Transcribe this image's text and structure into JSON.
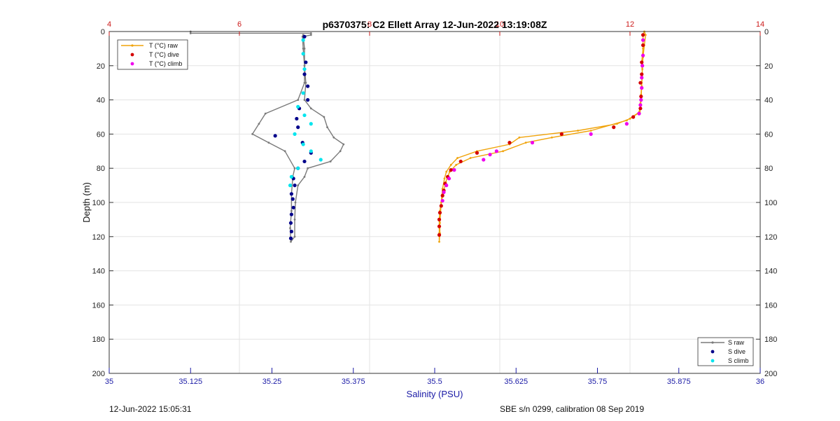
{
  "footer": {
    "left": "12-Jun-2022 15:05:31",
    "right": "SBE s/n 0299, calibration 08 Sep 2019"
  },
  "chart_data": {
    "type": "line",
    "title": "p6370375: C2 Ellett Array 12-Jun-2022 13:19:08Z",
    "xlabel": "Salinity (PSU)",
    "ylabel": "Depth (m)",
    "salinity_axis": {
      "range": [
        35,
        36
      ],
      "ticks": [
        35,
        35.125,
        35.25,
        35.375,
        35.5,
        35.625,
        35.75,
        35.875,
        36
      ],
      "tick_labels": [
        "35",
        "35.125",
        "35.25",
        "35.375",
        "35.5",
        "35.625",
        "35.75",
        "35.875",
        "36"
      ]
    },
    "temperature_axis": {
      "range": [
        4,
        14
      ],
      "ticks": [
        4,
        6,
        8,
        10,
        12,
        14
      ],
      "tick_labels": [
        "4",
        "6",
        "8",
        "10",
        "12",
        "14"
      ]
    },
    "depth_axis": {
      "range": [
        0,
        200
      ],
      "reversed": true,
      "ticks": [
        0,
        20,
        40,
        60,
        80,
        100,
        120,
        140,
        160,
        180,
        200
      ],
      "tick_labels": [
        "0",
        "20",
        "40",
        "60",
        "80",
        "100",
        "120",
        "140",
        "160",
        "180",
        "200"
      ]
    },
    "grid": true,
    "legends": [
      {
        "position": "top-left",
        "entries": [
          "T (°C) raw",
          "T (°C) dive",
          "T (°C) climb"
        ]
      },
      {
        "position": "bottom-right",
        "entries": [
          "S raw",
          "S dive",
          "S climb"
        ]
      }
    ],
    "colors": {
      "s_raw": "#7a7a7a",
      "s_dive": "#00008b",
      "s_climb": "#00e5ee",
      "t_raw": "#f0a30a",
      "t_dive": "#d40000",
      "t_climb": "#ee00ee"
    },
    "series": [
      {
        "name": "S raw",
        "axis": "salinity",
        "kind": "line",
        "points": [
          [
            35.125,
            0
          ],
          [
            35.125,
            1
          ],
          [
            35.31,
            1
          ],
          [
            35.31,
            2
          ],
          [
            35.297,
            3
          ],
          [
            35.298,
            10
          ],
          [
            35.3,
            20
          ],
          [
            35.3,
            30
          ],
          [
            35.29,
            40
          ],
          [
            35.24,
            48
          ],
          [
            35.23,
            54
          ],
          [
            35.22,
            60
          ],
          [
            35.245,
            65
          ],
          [
            35.27,
            70
          ],
          [
            35.285,
            80
          ],
          [
            35.282,
            85
          ],
          [
            35.28,
            95
          ],
          [
            35.28,
            105
          ],
          [
            35.278,
            115
          ],
          [
            35.279,
            123
          ],
          [
            35.285,
            120
          ],
          [
            35.285,
            110
          ],
          [
            35.286,
            100
          ],
          [
            35.29,
            90
          ],
          [
            35.3,
            85
          ],
          [
            35.305,
            80
          ],
          [
            35.34,
            76
          ],
          [
            35.355,
            70
          ],
          [
            35.36,
            66
          ],
          [
            35.345,
            62
          ],
          [
            35.335,
            56
          ],
          [
            35.33,
            50
          ],
          [
            35.31,
            45
          ],
          [
            35.3,
            40
          ],
          [
            35.302,
            30
          ],
          [
            35.3,
            20
          ],
          [
            35.3,
            10
          ],
          [
            35.298,
            2
          ]
        ]
      },
      {
        "name": "S dive",
        "axis": "salinity",
        "kind": "scatter",
        "points": [
          [
            35.3,
            3
          ],
          [
            35.302,
            18
          ],
          [
            35.3,
            25
          ],
          [
            35.305,
            32
          ],
          [
            35.305,
            40
          ],
          [
            35.292,
            45
          ],
          [
            35.288,
            51
          ],
          [
            35.29,
            56
          ],
          [
            35.255,
            61
          ],
          [
            35.297,
            65
          ],
          [
            35.31,
            71
          ],
          [
            35.3,
            76
          ],
          [
            35.29,
            80
          ],
          [
            35.283,
            86
          ],
          [
            35.285,
            90
          ],
          [
            35.28,
            95
          ],
          [
            35.282,
            98
          ],
          [
            35.283,
            103
          ],
          [
            35.28,
            107
          ],
          [
            35.279,
            112
          ],
          [
            35.28,
            117
          ],
          [
            35.279,
            121
          ]
        ]
      },
      {
        "name": "S climb",
        "axis": "salinity",
        "kind": "scatter",
        "points": [
          [
            35.298,
            5
          ],
          [
            35.298,
            13
          ],
          [
            35.3,
            22
          ],
          [
            35.298,
            36
          ],
          [
            35.29,
            44
          ],
          [
            35.3,
            49
          ],
          [
            35.31,
            54
          ],
          [
            35.285,
            60
          ],
          [
            35.298,
            66
          ],
          [
            35.31,
            70
          ],
          [
            35.325,
            75
          ],
          [
            35.29,
            80
          ],
          [
            35.28,
            85
          ],
          [
            35.278,
            90
          ]
        ]
      },
      {
        "name": "T (°C) raw",
        "axis": "temperature",
        "kind": "line",
        "points": [
          [
            12.22,
            0
          ],
          [
            12.2,
            2
          ],
          [
            12.2,
            5
          ],
          [
            12.2,
            10
          ],
          [
            12.18,
            18
          ],
          [
            12.19,
            25
          ],
          [
            12.18,
            32
          ],
          [
            12.17,
            40
          ],
          [
            12.16,
            45
          ],
          [
            12.12,
            48
          ],
          [
            12.0,
            51
          ],
          [
            11.8,
            54
          ],
          [
            11.2,
            58
          ],
          [
            10.3,
            62
          ],
          [
            10.15,
            66
          ],
          [
            9.65,
            70
          ],
          [
            9.35,
            74
          ],
          [
            9.25,
            78
          ],
          [
            9.18,
            82
          ],
          [
            9.15,
            86
          ],
          [
            9.12,
            92
          ],
          [
            9.1,
            100
          ],
          [
            9.08,
            105
          ],
          [
            9.07,
            110
          ],
          [
            9.07,
            118
          ],
          [
            9.07,
            123
          ],
          [
            9.08,
            118
          ],
          [
            9.08,
            112
          ],
          [
            9.09,
            106
          ],
          [
            9.1,
            100
          ],
          [
            9.13,
            95
          ],
          [
            9.17,
            88
          ],
          [
            9.23,
            82
          ],
          [
            9.33,
            78
          ],
          [
            9.55,
            74
          ],
          [
            10.05,
            70
          ],
          [
            10.4,
            65
          ],
          [
            10.8,
            62
          ],
          [
            11.4,
            58
          ],
          [
            11.95,
            52
          ],
          [
            12.15,
            47
          ],
          [
            12.16,
            42
          ],
          [
            12.17,
            37
          ],
          [
            12.18,
            30
          ],
          [
            12.19,
            22
          ],
          [
            12.2,
            15
          ],
          [
            12.22,
            8
          ],
          [
            12.24,
            2
          ],
          [
            12.22,
            0
          ]
        ]
      },
      {
        "name": "T (°C) dive",
        "axis": "temperature",
        "kind": "scatter",
        "points": [
          [
            12.2,
            2
          ],
          [
            12.2,
            8
          ],
          [
            12.18,
            18
          ],
          [
            12.18,
            25
          ],
          [
            12.16,
            30
          ],
          [
            12.17,
            38
          ],
          [
            12.16,
            45
          ],
          [
            12.05,
            50
          ],
          [
            11.75,
            56
          ],
          [
            10.95,
            60
          ],
          [
            10.15,
            65
          ],
          [
            9.65,
            71
          ],
          [
            9.4,
            76
          ],
          [
            9.25,
            81
          ],
          [
            9.2,
            85
          ],
          [
            9.16,
            89
          ],
          [
            9.14,
            93
          ],
          [
            9.12,
            96
          ],
          [
            9.1,
            102
          ],
          [
            9.08,
            106
          ],
          [
            9.07,
            110
          ],
          [
            9.07,
            114
          ],
          [
            9.07,
            119
          ]
        ]
      },
      {
        "name": "T (°C) climb",
        "axis": "temperature",
        "kind": "scatter",
        "points": [
          [
            12.2,
            5
          ],
          [
            12.2,
            14
          ],
          [
            12.19,
            20
          ],
          [
            12.18,
            27
          ],
          [
            12.18,
            33
          ],
          [
            12.17,
            40
          ],
          [
            12.16,
            43
          ],
          [
            12.14,
            48
          ],
          [
            11.95,
            54
          ],
          [
            11.4,
            60
          ],
          [
            10.5,
            65
          ],
          [
            9.95,
            70
          ],
          [
            9.85,
            72
          ],
          [
            9.75,
            75
          ],
          [
            9.3,
            81
          ],
          [
            9.22,
            86
          ],
          [
            9.18,
            90
          ],
          [
            9.14,
            94
          ],
          [
            9.12,
            99
          ]
        ]
      }
    ]
  }
}
